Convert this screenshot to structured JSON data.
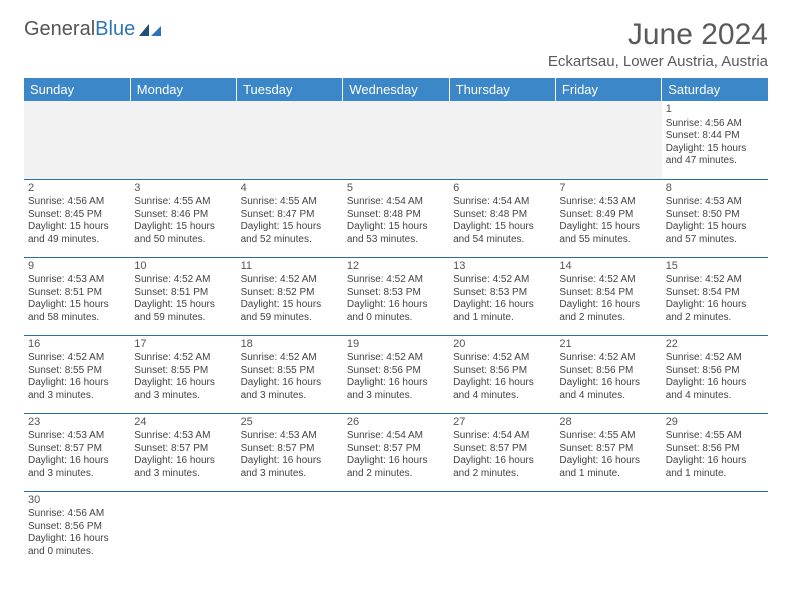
{
  "logo": {
    "text_general": "General",
    "text_blue": "Blue"
  },
  "title": "June 2024",
  "location": "Eckartsau, Lower Austria, Austria",
  "colors": {
    "header_bg": "#3b87c8",
    "header_text": "#ffffff",
    "row_border": "#2e6da4",
    "logo_blue": "#2e75b6",
    "text": "#444444",
    "empty_bg": "#f2f2f2"
  },
  "weekdays": [
    "Sunday",
    "Monday",
    "Tuesday",
    "Wednesday",
    "Thursday",
    "Friday",
    "Saturday"
  ],
  "weeks": [
    [
      {
        "empty": true
      },
      {
        "empty": true
      },
      {
        "empty": true
      },
      {
        "empty": true
      },
      {
        "empty": true
      },
      {
        "empty": true
      },
      {
        "day": "1",
        "sunrise": "Sunrise: 4:56 AM",
        "sunset": "Sunset: 8:44 PM",
        "daylight1": "Daylight: 15 hours",
        "daylight2": "and 47 minutes."
      }
    ],
    [
      {
        "day": "2",
        "sunrise": "Sunrise: 4:56 AM",
        "sunset": "Sunset: 8:45 PM",
        "daylight1": "Daylight: 15 hours",
        "daylight2": "and 49 minutes."
      },
      {
        "day": "3",
        "sunrise": "Sunrise: 4:55 AM",
        "sunset": "Sunset: 8:46 PM",
        "daylight1": "Daylight: 15 hours",
        "daylight2": "and 50 minutes."
      },
      {
        "day": "4",
        "sunrise": "Sunrise: 4:55 AM",
        "sunset": "Sunset: 8:47 PM",
        "daylight1": "Daylight: 15 hours",
        "daylight2": "and 52 minutes."
      },
      {
        "day": "5",
        "sunrise": "Sunrise: 4:54 AM",
        "sunset": "Sunset: 8:48 PM",
        "daylight1": "Daylight: 15 hours",
        "daylight2": "and 53 minutes."
      },
      {
        "day": "6",
        "sunrise": "Sunrise: 4:54 AM",
        "sunset": "Sunset: 8:48 PM",
        "daylight1": "Daylight: 15 hours",
        "daylight2": "and 54 minutes."
      },
      {
        "day": "7",
        "sunrise": "Sunrise: 4:53 AM",
        "sunset": "Sunset: 8:49 PM",
        "daylight1": "Daylight: 15 hours",
        "daylight2": "and 55 minutes."
      },
      {
        "day": "8",
        "sunrise": "Sunrise: 4:53 AM",
        "sunset": "Sunset: 8:50 PM",
        "daylight1": "Daylight: 15 hours",
        "daylight2": "and 57 minutes."
      }
    ],
    [
      {
        "day": "9",
        "sunrise": "Sunrise: 4:53 AM",
        "sunset": "Sunset: 8:51 PM",
        "daylight1": "Daylight: 15 hours",
        "daylight2": "and 58 minutes."
      },
      {
        "day": "10",
        "sunrise": "Sunrise: 4:52 AM",
        "sunset": "Sunset: 8:51 PM",
        "daylight1": "Daylight: 15 hours",
        "daylight2": "and 59 minutes."
      },
      {
        "day": "11",
        "sunrise": "Sunrise: 4:52 AM",
        "sunset": "Sunset: 8:52 PM",
        "daylight1": "Daylight: 15 hours",
        "daylight2": "and 59 minutes."
      },
      {
        "day": "12",
        "sunrise": "Sunrise: 4:52 AM",
        "sunset": "Sunset: 8:53 PM",
        "daylight1": "Daylight: 16 hours",
        "daylight2": "and 0 minutes."
      },
      {
        "day": "13",
        "sunrise": "Sunrise: 4:52 AM",
        "sunset": "Sunset: 8:53 PM",
        "daylight1": "Daylight: 16 hours",
        "daylight2": "and 1 minute."
      },
      {
        "day": "14",
        "sunrise": "Sunrise: 4:52 AM",
        "sunset": "Sunset: 8:54 PM",
        "daylight1": "Daylight: 16 hours",
        "daylight2": "and 2 minutes."
      },
      {
        "day": "15",
        "sunrise": "Sunrise: 4:52 AM",
        "sunset": "Sunset: 8:54 PM",
        "daylight1": "Daylight: 16 hours",
        "daylight2": "and 2 minutes."
      }
    ],
    [
      {
        "day": "16",
        "sunrise": "Sunrise: 4:52 AM",
        "sunset": "Sunset: 8:55 PM",
        "daylight1": "Daylight: 16 hours",
        "daylight2": "and 3 minutes."
      },
      {
        "day": "17",
        "sunrise": "Sunrise: 4:52 AM",
        "sunset": "Sunset: 8:55 PM",
        "daylight1": "Daylight: 16 hours",
        "daylight2": "and 3 minutes."
      },
      {
        "day": "18",
        "sunrise": "Sunrise: 4:52 AM",
        "sunset": "Sunset: 8:55 PM",
        "daylight1": "Daylight: 16 hours",
        "daylight2": "and 3 minutes."
      },
      {
        "day": "19",
        "sunrise": "Sunrise: 4:52 AM",
        "sunset": "Sunset: 8:56 PM",
        "daylight1": "Daylight: 16 hours",
        "daylight2": "and 3 minutes."
      },
      {
        "day": "20",
        "sunrise": "Sunrise: 4:52 AM",
        "sunset": "Sunset: 8:56 PM",
        "daylight1": "Daylight: 16 hours",
        "daylight2": "and 4 minutes."
      },
      {
        "day": "21",
        "sunrise": "Sunrise: 4:52 AM",
        "sunset": "Sunset: 8:56 PM",
        "daylight1": "Daylight: 16 hours",
        "daylight2": "and 4 minutes."
      },
      {
        "day": "22",
        "sunrise": "Sunrise: 4:52 AM",
        "sunset": "Sunset: 8:56 PM",
        "daylight1": "Daylight: 16 hours",
        "daylight2": "and 4 minutes."
      }
    ],
    [
      {
        "day": "23",
        "sunrise": "Sunrise: 4:53 AM",
        "sunset": "Sunset: 8:57 PM",
        "daylight1": "Daylight: 16 hours",
        "daylight2": "and 3 minutes."
      },
      {
        "day": "24",
        "sunrise": "Sunrise: 4:53 AM",
        "sunset": "Sunset: 8:57 PM",
        "daylight1": "Daylight: 16 hours",
        "daylight2": "and 3 minutes."
      },
      {
        "day": "25",
        "sunrise": "Sunrise: 4:53 AM",
        "sunset": "Sunset: 8:57 PM",
        "daylight1": "Daylight: 16 hours",
        "daylight2": "and 3 minutes."
      },
      {
        "day": "26",
        "sunrise": "Sunrise: 4:54 AM",
        "sunset": "Sunset: 8:57 PM",
        "daylight1": "Daylight: 16 hours",
        "daylight2": "and 2 minutes."
      },
      {
        "day": "27",
        "sunrise": "Sunrise: 4:54 AM",
        "sunset": "Sunset: 8:57 PM",
        "daylight1": "Daylight: 16 hours",
        "daylight2": "and 2 minutes."
      },
      {
        "day": "28",
        "sunrise": "Sunrise: 4:55 AM",
        "sunset": "Sunset: 8:57 PM",
        "daylight1": "Daylight: 16 hours",
        "daylight2": "and 1 minute."
      },
      {
        "day": "29",
        "sunrise": "Sunrise: 4:55 AM",
        "sunset": "Sunset: 8:56 PM",
        "daylight1": "Daylight: 16 hours",
        "daylight2": "and 1 minute."
      }
    ],
    [
      {
        "day": "30",
        "sunrise": "Sunrise: 4:56 AM",
        "sunset": "Sunset: 8:56 PM",
        "daylight1": "Daylight: 16 hours",
        "daylight2": "and 0 minutes."
      },
      {
        "empty": true
      },
      {
        "empty": true
      },
      {
        "empty": true
      },
      {
        "empty": true
      },
      {
        "empty": true
      },
      {
        "empty": true
      }
    ]
  ]
}
